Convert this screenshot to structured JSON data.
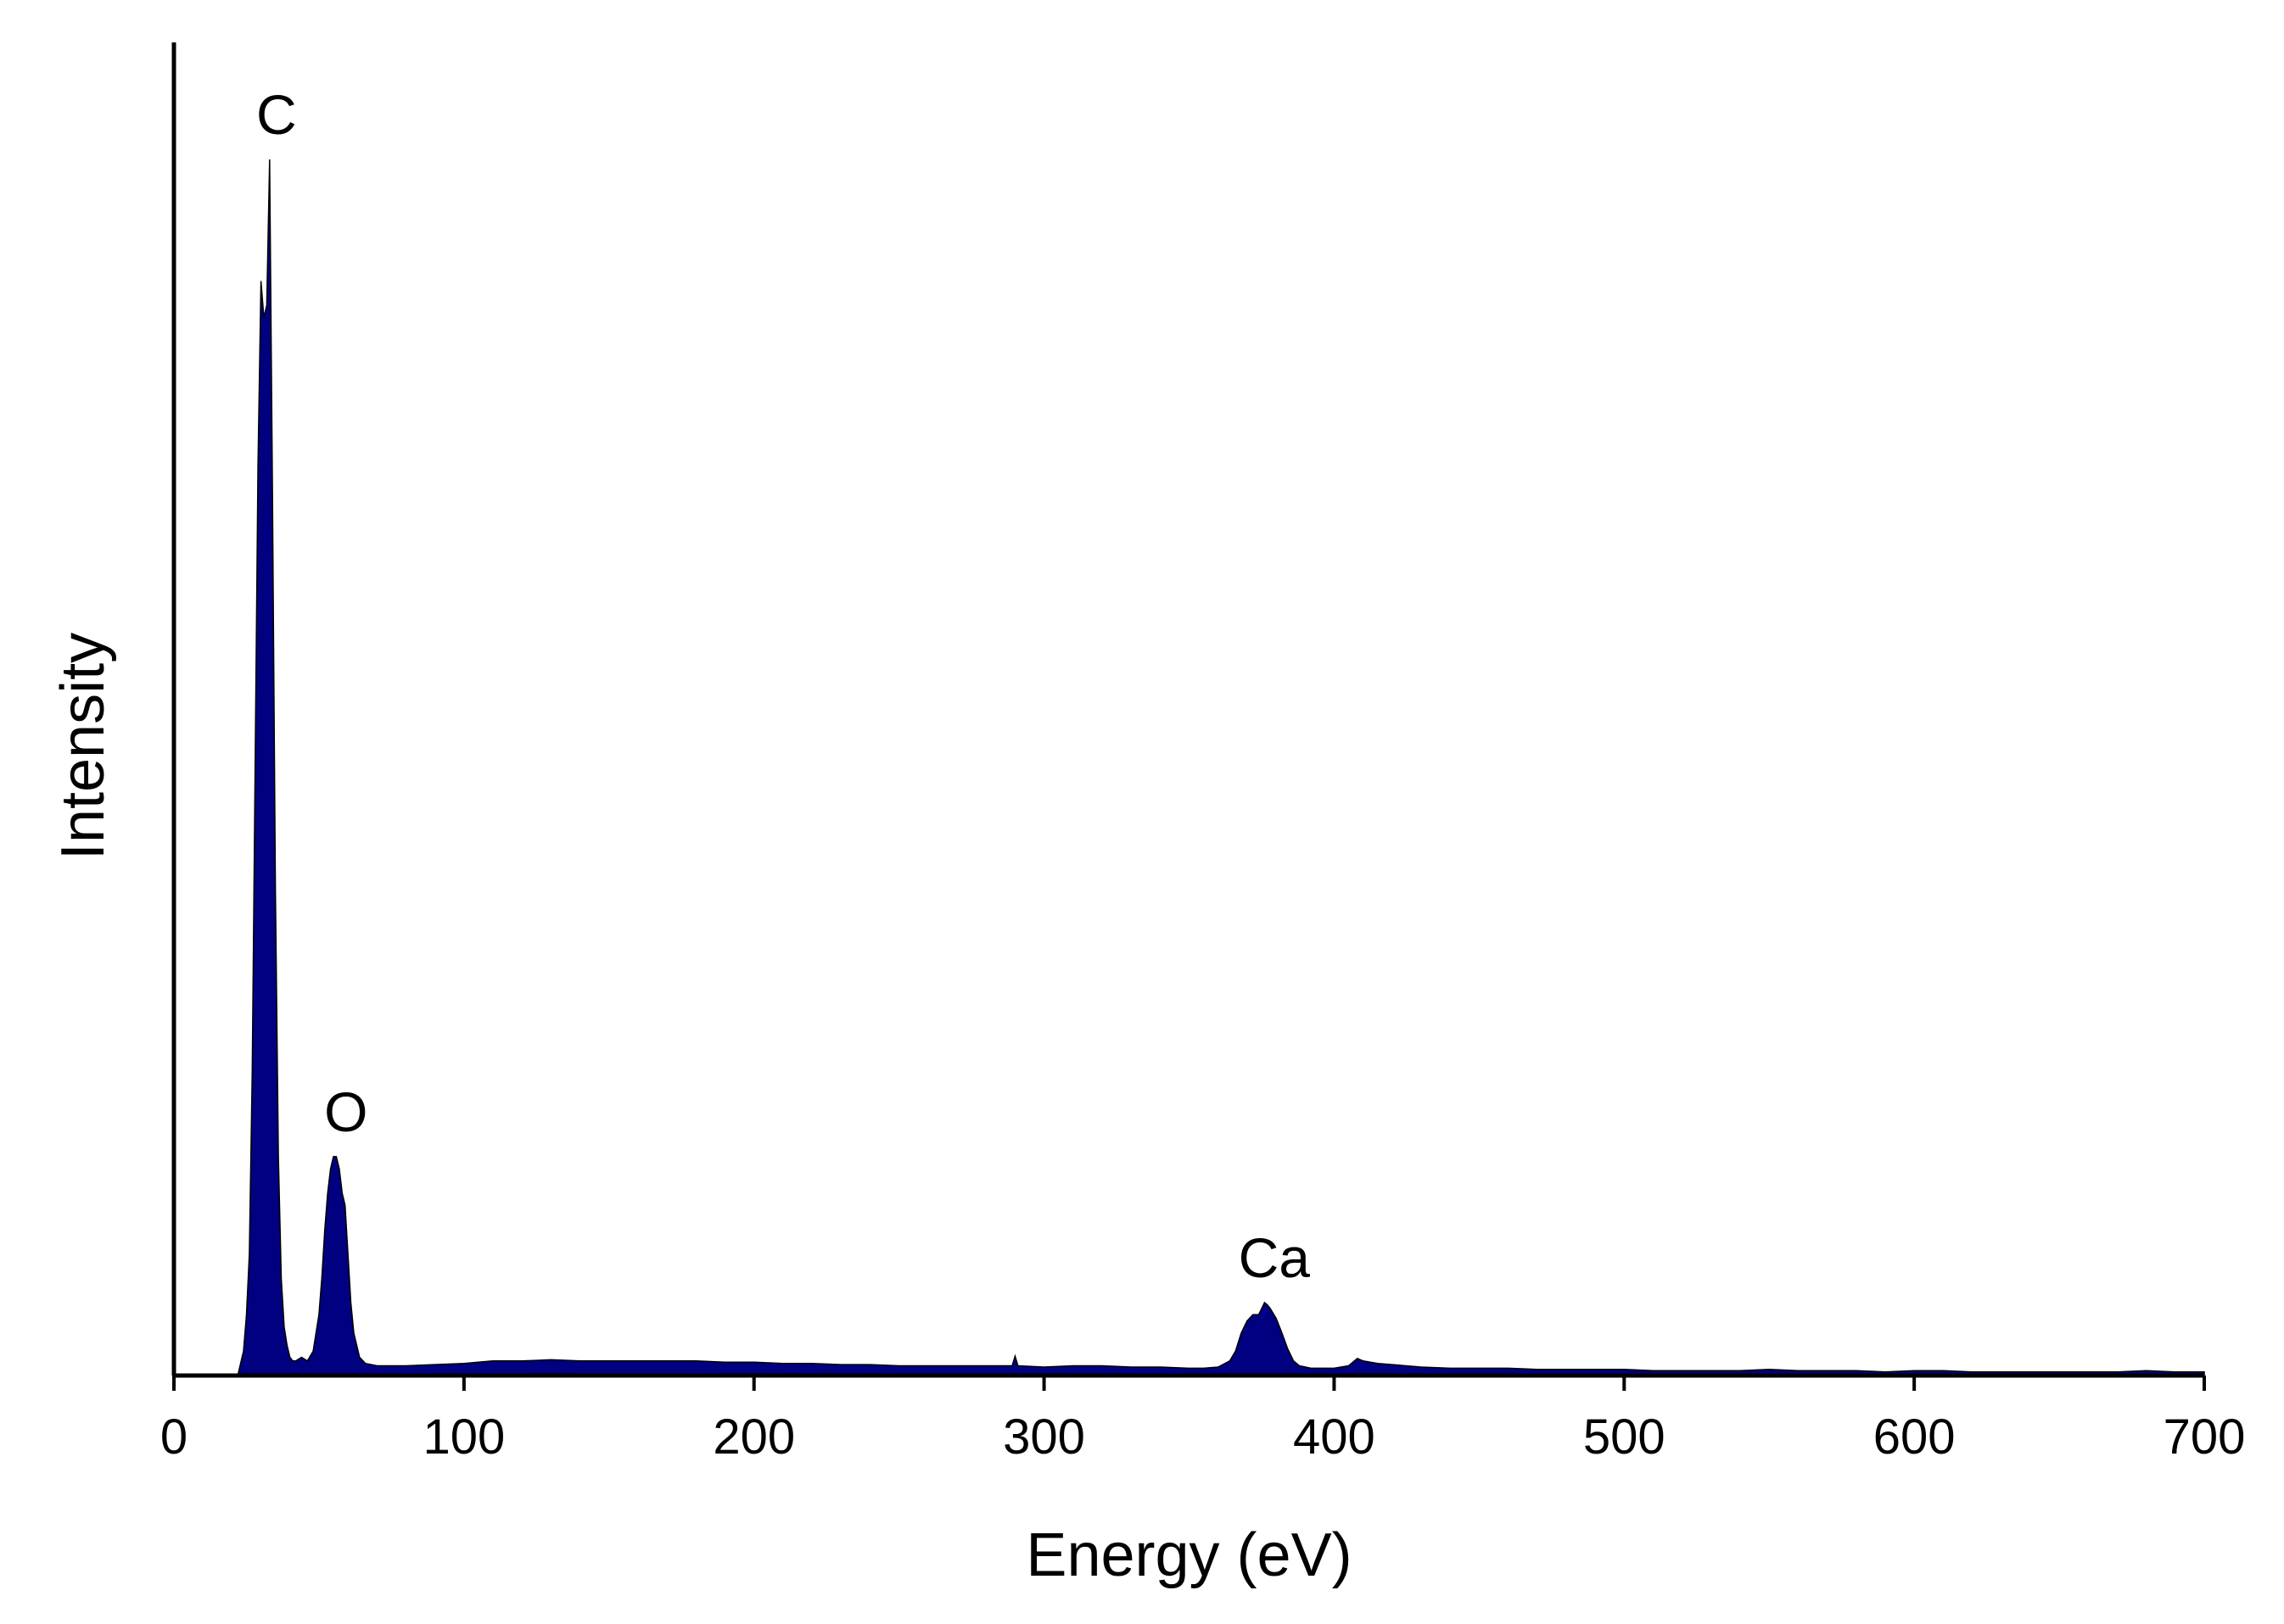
{
  "chart_data": {
    "type": "area",
    "title": "",
    "xlabel": "Energy (eV)",
    "ylabel": "Intensity",
    "xlim": [
      0,
      700
    ],
    "ylim": [
      0,
      1
    ],
    "x_ticks": [
      0,
      100,
      200,
      300,
      400,
      500,
      600,
      700
    ],
    "y_ticks": [],
    "grid": false,
    "legend": "none",
    "fill_color": "#000080",
    "outline_color": "#000000",
    "series": [
      {
        "x": [
          20,
          22,
          24,
          25,
          26,
          27,
          28,
          29,
          30,
          31,
          32,
          33,
          34,
          35,
          36,
          37,
          38,
          39,
          40,
          41,
          42,
          44,
          46,
          48,
          50,
          51,
          52,
          53,
          54,
          55,
          56,
          57,
          58,
          59,
          60,
          61,
          62,
          63,
          64,
          66,
          70,
          80,
          90,
          100,
          110,
          120,
          130,
          140,
          150,
          160,
          170,
          180,
          190,
          200,
          210,
          220,
          230,
          240,
          250,
          260,
          270,
          280,
          289,
          290,
          291,
          300,
          310,
          320,
          330,
          340,
          350,
          355,
          360,
          364,
          366,
          368,
          370,
          372,
          374,
          375,
          376,
          377,
          378,
          380,
          382,
          384,
          386,
          388,
          392,
          400,
          405,
          408,
          410,
          415,
          420,
          430,
          440,
          450,
          460,
          470,
          480,
          490,
          500,
          510,
          520,
          530,
          540,
          550,
          560,
          570,
          580,
          590,
          600,
          610,
          620,
          630,
          640,
          650,
          660,
          670,
          680,
          690,
          700
        ],
        "y": [
          0.0,
          0.0,
          0.02,
          0.05,
          0.1,
          0.25,
          0.5,
          0.75,
          0.9,
          0.87,
          0.88,
          1.0,
          0.72,
          0.4,
          0.18,
          0.08,
          0.04,
          0.025,
          0.015,
          0.012,
          0.012,
          0.015,
          0.012,
          0.02,
          0.05,
          0.08,
          0.12,
          0.15,
          0.17,
          0.18,
          0.18,
          0.17,
          0.15,
          0.14,
          0.1,
          0.06,
          0.035,
          0.025,
          0.015,
          0.01,
          0.008,
          0.008,
          0.009,
          0.01,
          0.012,
          0.012,
          0.013,
          0.012,
          0.012,
          0.012,
          0.012,
          0.012,
          0.011,
          0.011,
          0.01,
          0.01,
          0.009,
          0.009,
          0.008,
          0.008,
          0.008,
          0.008,
          0.008,
          0.016,
          0.008,
          0.007,
          0.008,
          0.008,
          0.007,
          0.007,
          0.006,
          0.006,
          0.007,
          0.012,
          0.02,
          0.035,
          0.045,
          0.05,
          0.05,
          0.055,
          0.06,
          0.058,
          0.055,
          0.047,
          0.035,
          0.022,
          0.012,
          0.008,
          0.006,
          0.006,
          0.008,
          0.014,
          0.012,
          0.01,
          0.009,
          0.007,
          0.006,
          0.006,
          0.006,
          0.005,
          0.005,
          0.005,
          0.005,
          0.004,
          0.004,
          0.004,
          0.004,
          0.005,
          0.004,
          0.004,
          0.004,
          0.003,
          0.004,
          0.004,
          0.003,
          0.003,
          0.003,
          0.003,
          0.003,
          0.003,
          0.004,
          0.003,
          0.003
        ]
      }
    ],
    "annotations": [
      {
        "text": "C",
        "x": 33,
        "y": 1.0
      },
      {
        "text": "O",
        "x": 57,
        "y": 0.18
      },
      {
        "text": "Ca",
        "x": 377,
        "y": 0.06
      }
    ]
  }
}
